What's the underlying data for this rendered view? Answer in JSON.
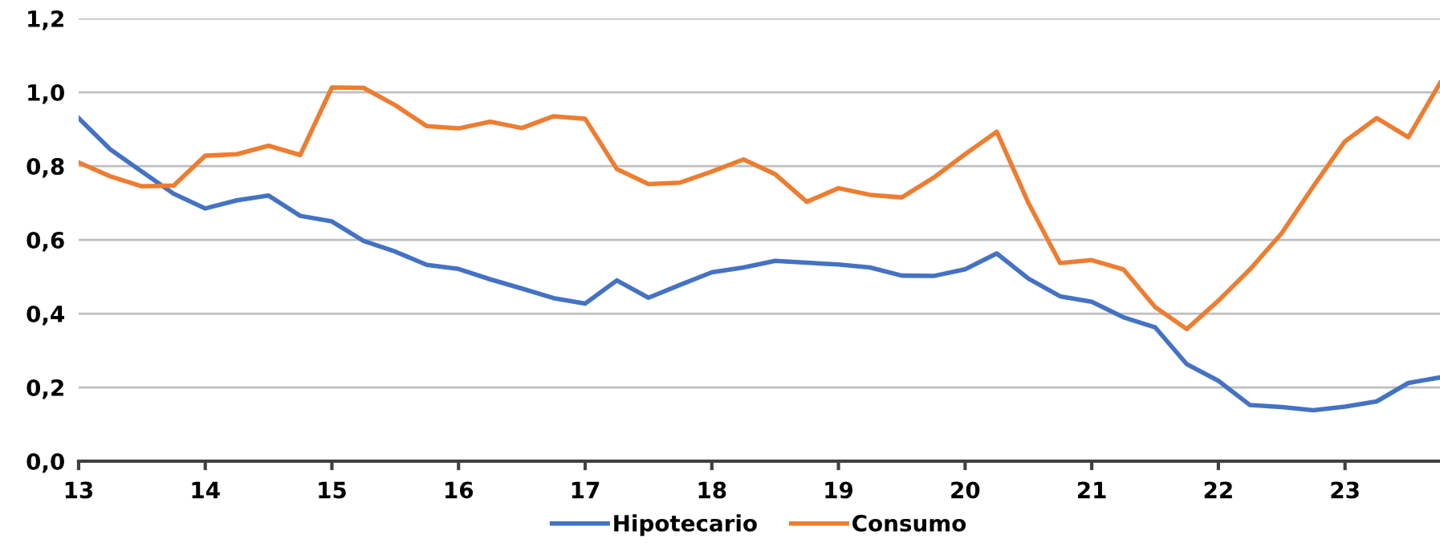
{
  "chart_data": {
    "type": "line",
    "x": [
      13.0,
      13.25,
      13.5,
      13.75,
      14.0,
      14.25,
      14.5,
      14.75,
      15.0,
      15.25,
      15.5,
      15.75,
      16.0,
      16.25,
      16.5,
      16.75,
      17.0,
      17.25,
      17.5,
      17.75,
      18.0,
      18.25,
      18.5,
      18.75,
      19.0,
      19.25,
      19.5,
      19.75,
      20.0,
      20.25,
      20.5,
      20.75,
      21.0,
      21.25,
      21.5,
      21.75,
      22.0,
      22.25,
      22.5,
      22.75,
      23.0,
      23.25,
      23.5,
      23.75
    ],
    "series": [
      {
        "name": "Hipotecario",
        "color": "#4472c4",
        "values": [
          0.93,
          0.845,
          0.785,
          0.725,
          0.685,
          0.707,
          0.72,
          0.665,
          0.65,
          0.597,
          0.568,
          0.532,
          0.521,
          0.493,
          0.468,
          0.442,
          0.427,
          0.49,
          0.443,
          0.478,
          0.512,
          0.525,
          0.543,
          0.538,
          0.533,
          0.525,
          0.503,
          0.502,
          0.52,
          0.563,
          0.495,
          0.447,
          0.432,
          0.39,
          0.363,
          0.263,
          0.218,
          0.152,
          0.147,
          0.138,
          0.148,
          0.162,
          0.212,
          0.227
        ]
      },
      {
        "name": "Consumo",
        "color": "#ed7d31",
        "values": [
          0.81,
          0.772,
          0.745,
          0.747,
          0.828,
          0.832,
          0.855,
          0.83,
          1.013,
          1.012,
          0.965,
          0.908,
          0.902,
          0.92,
          0.903,
          0.935,
          0.928,
          0.792,
          0.751,
          0.755,
          0.785,
          0.818,
          0.778,
          0.703,
          0.74,
          0.722,
          0.715,
          0.768,
          0.832,
          0.893,
          0.7,
          0.537,
          0.545,
          0.52,
          0.418,
          0.358,
          0.435,
          0.52,
          0.618,
          0.745,
          0.867,
          0.93,
          0.878,
          1.025
        ]
      }
    ],
    "xlim": [
      13,
      23.75
    ],
    "xticks": [
      13,
      14,
      15,
      16,
      17,
      18,
      19,
      20,
      21,
      22,
      23
    ],
    "ylim": [
      0,
      1.2
    ],
    "yticks": [
      {
        "value": 0,
        "label": "0,0"
      },
      {
        "value": 0.2,
        "label": "0,2"
      },
      {
        "value": 0.4,
        "label": "0,4"
      },
      {
        "value": 0.6,
        "label": "0,6"
      },
      {
        "value": 0.8,
        "label": "0,8"
      },
      {
        "value": 1.0,
        "label": "1,0"
      },
      {
        "value": 1.2,
        "label": "1,2"
      }
    ],
    "grid": "y",
    "legend": "bottom",
    "marker": "none",
    "line_style": "solid"
  }
}
